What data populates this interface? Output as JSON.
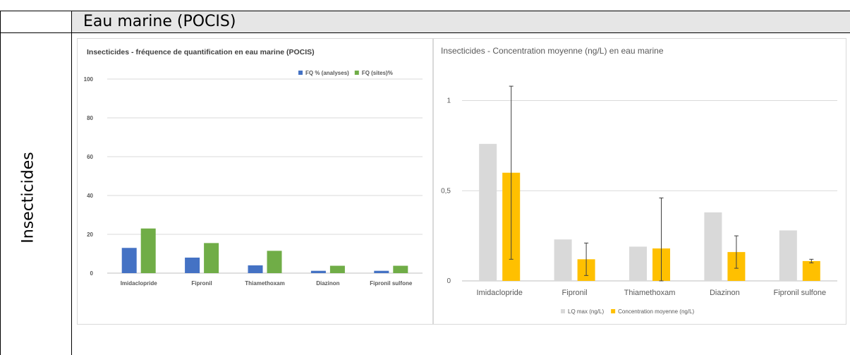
{
  "table": {
    "header": "Eau marine (POCIS)",
    "row_label": "Insecticides"
  },
  "chart_data": [
    {
      "type": "bar",
      "title": "Insecticides - fréquence de quantification en eau marine (POCIS)",
      "categories": [
        "Imidaclopride",
        "Fipronil",
        "Thiamethoxam",
        "Diazinon",
        "Fipronil sulfone"
      ],
      "series": [
        {
          "name": "FQ % (analyses)",
          "color": "#4472c4",
          "values": [
            13,
            8,
            4,
            1.2,
            1.2
          ]
        },
        {
          "name": "FQ (sites)%",
          "color": "#70ad47",
          "values": [
            23,
            15.5,
            11.5,
            3.8,
            3.8
          ]
        }
      ],
      "ylim": [
        0,
        100
      ],
      "yticks": [
        "0",
        "20",
        "40",
        "60",
        "80",
        "100"
      ],
      "legend": "top-right",
      "grid": true
    },
    {
      "type": "bar",
      "title": "Insecticides - Concentration moyenne (ng/L) en eau marine",
      "categories": [
        "Imidaclopride",
        "Fipronil",
        "Thiamethoxam",
        "Diazinon",
        "Fipronil sulfone"
      ],
      "series": [
        {
          "name": "LQ max (ng/L)",
          "color": "#d9d9d9",
          "values": [
            0.76,
            0.23,
            0.19,
            0.38,
            0.28
          ]
        },
        {
          "name": "Concentration moyenne (ng/L)",
          "color": "#ffc000",
          "values": [
            0.6,
            0.12,
            0.18,
            0.16,
            0.11
          ],
          "error_low": [
            0.12,
            0.03,
            0,
            0.07,
            0.1
          ],
          "error_high": [
            1.08,
            0.21,
            0.46,
            0.25,
            0.12
          ]
        }
      ],
      "ylim": [
        0,
        1.1
      ],
      "yticks": [
        "0",
        "0,5",
        "1"
      ],
      "legend": "bottom",
      "grid": true
    }
  ]
}
